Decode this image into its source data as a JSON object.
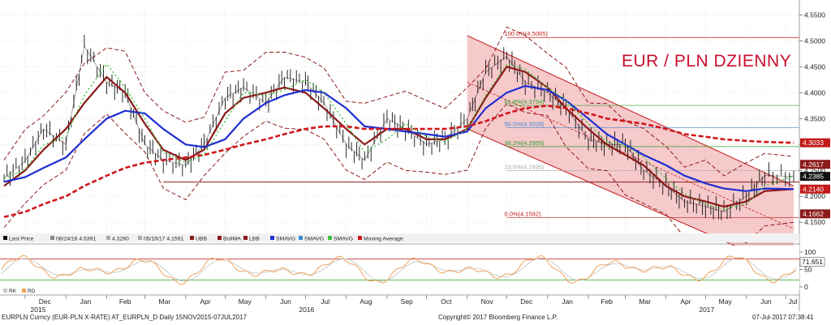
{
  "chart_data": {
    "type": "line",
    "title": "EUR / PLN DZIENNY",
    "y_axis": {
      "ticks": [
        "4.5500",
        "4.5000",
        "4.4500",
        "4.4000",
        "4.3500",
        "4.3000",
        "4.2500",
        "4.2000",
        "4.1500"
      ],
      "range": [
        4.13,
        4.56
      ],
      "side": "right"
    },
    "x_axis": {
      "months": [
        "Dec",
        "Jan",
        "Feb",
        "Mar",
        "Apr",
        "May",
        "Jun",
        "Jul",
        "Aug",
        "Sep",
        "Oct",
        "Nov",
        "Dec",
        "Jan",
        "Feb",
        "Mar",
        "Apr",
        "May",
        "Jun",
        "Jul"
      ],
      "years": [
        "2015",
        "2016",
        "2017"
      ]
    },
    "price_series": {
      "name": "Last Price",
      "dates": [
        "2015-11-15",
        "2015-12-01",
        "2015-12-15",
        "2016-01-01",
        "2016-01-15",
        "2016-02-01",
        "2016-02-15",
        "2016-03-01",
        "2016-03-15",
        "2016-04-01",
        "2016-04-15",
        "2016-05-01",
        "2016-05-15",
        "2016-06-01",
        "2016-06-15",
        "2016-07-01",
        "2016-07-15",
        "2016-08-01",
        "2016-08-15",
        "2016-09-01",
        "2016-09-15",
        "2016-10-01",
        "2016-10-15",
        "2016-11-01",
        "2016-11-15",
        "2016-12-01",
        "2016-12-15",
        "2017-01-01",
        "2017-01-15",
        "2017-02-01",
        "2017-02-15",
        "2017-03-01",
        "2017-03-15",
        "2017-04-01",
        "2017-04-15",
        "2017-05-01",
        "2017-05-15",
        "2017-06-01",
        "2017-06-15",
        "2017-07-07"
      ],
      "values": [
        4.235,
        4.268,
        4.33,
        4.3,
        4.49,
        4.42,
        4.4,
        4.3,
        4.27,
        4.26,
        4.3,
        4.39,
        4.41,
        4.38,
        4.43,
        4.42,
        4.38,
        4.3,
        4.27,
        4.35,
        4.33,
        4.3,
        4.31,
        4.35,
        4.44,
        4.47,
        4.42,
        4.4,
        4.37,
        4.31,
        4.3,
        4.3,
        4.25,
        4.22,
        4.19,
        4.18,
        4.17,
        4.2,
        4.24,
        4.2385
      ]
    },
    "moving_averages": [
      {
        "label": "BolIMA",
        "color": "#8b1a1a",
        "values": [
          4.22,
          4.25,
          4.29,
          4.33,
          4.38,
          4.43,
          4.4,
          4.34,
          4.29,
          4.27,
          4.29,
          4.36,
          4.39,
          4.4,
          4.41,
          4.4,
          4.37,
          4.33,
          4.3,
          4.33,
          4.33,
          4.31,
          4.31,
          4.33,
          4.39,
          4.45,
          4.44,
          4.41,
          4.37,
          4.33,
          4.3,
          4.28,
          4.26,
          4.22,
          4.2,
          4.19,
          4.18,
          4.19,
          4.21,
          4.214
        ]
      },
      {
        "label": "SMAVG",
        "color": "#1f2ed1",
        "values": [
          4.228,
          4.237,
          4.255,
          4.275,
          4.31,
          4.35,
          4.365,
          4.36,
          4.33,
          4.3,
          4.295,
          4.31,
          4.35,
          4.38,
          4.395,
          4.405,
          4.4,
          4.37,
          4.335,
          4.33,
          4.325,
          4.32,
          4.315,
          4.325,
          4.37,
          4.4,
          4.413,
          4.405,
          4.385,
          4.35,
          4.32,
          4.3,
          4.28,
          4.26,
          4.24,
          4.225,
          4.215,
          4.21,
          4.215,
          4.214
        ]
      },
      {
        "label": "Moving Average",
        "color": "#d0161b",
        "values": [
          4.16,
          4.17,
          4.185,
          4.2,
          4.22,
          4.24,
          4.255,
          4.265,
          4.27,
          4.275,
          4.28,
          4.29,
          4.3,
          4.31,
          4.32,
          4.33,
          4.335,
          4.335,
          4.33,
          4.33,
          4.33,
          4.33,
          4.33,
          4.335,
          4.345,
          4.36,
          4.37,
          4.375,
          4.37,
          4.36,
          4.35,
          4.345,
          4.34,
          4.33,
          4.32,
          4.315,
          4.31,
          4.307,
          4.305,
          4.3033
        ]
      }
    ],
    "price_labels": [
      {
        "value": 4.3033,
        "text": "4.3033",
        "color": "#c41a1a"
      },
      {
        "value": 4.2617,
        "text": "4.2617",
        "color": "#8b1a1a"
      },
      {
        "value": 4.2385,
        "text": "4.2385",
        "color": "#111111"
      },
      {
        "value": 4.214,
        "text": "4.2140",
        "color": "#c41a1a"
      },
      {
        "value": 4.1662,
        "text": "4.1662",
        "color": "#8b1a1a"
      }
    ],
    "fib_levels": [
      {
        "value": 4.5065,
        "label": "100.0%(4.5065)",
        "color": "#c41a1a"
      },
      {
        "value": 4.3754,
        "label": "61.8%(4.3754)",
        "color": "#2aa02a"
      },
      {
        "value": 4.3328,
        "label": "50.0%(4.3328)",
        "color": "#3a8ccf"
      },
      {
        "value": 4.2959,
        "label": "38.2%(4.2959)",
        "color": "#2aa02a"
      },
      {
        "value": 4.2495,
        "label": "23.6%(4.2495)",
        "color": "#aaaaaa"
      },
      {
        "value": 4.1592,
        "label": "0.0%(4.1592)",
        "color": "#c41a1a"
      }
    ],
    "support_line": {
      "value": 4.2275
    },
    "legend": [
      "Last Price",
      "06/24/16 4.5391",
      "4.3260",
      "05/16/17 4.1591",
      "UBB",
      "BolIMA",
      "LBB",
      "SMAVG",
      "SMAVG",
      "SMAVG",
      "Moving Average"
    ],
    "legend_placement": "bottom-left",
    "grid": true,
    "oscillator": {
      "ticks": [
        "100",
        "50",
        "0"
      ],
      "current_value": "71.651",
      "legend": [
        "RK",
        "RD"
      ],
      "range": [
        0,
        100
      ]
    }
  },
  "footer": {
    "left": "EURPLN Curncy (EUR-PLN X-RATE) AT_EURPLN_D  Daily 15NOV2015-07JUL2017",
    "center": "Copyright© 2017 Bloomberg Finance L.P.",
    "right": "07-Jul-2017 07:38:41"
  },
  "colors": {
    "price": "#111111",
    "bollinger_band": "#8b1a1a",
    "channel_fill": "#f3b7b9",
    "channel_line": "#c41a1a",
    "oscillator_line": "#f0a35c"
  }
}
